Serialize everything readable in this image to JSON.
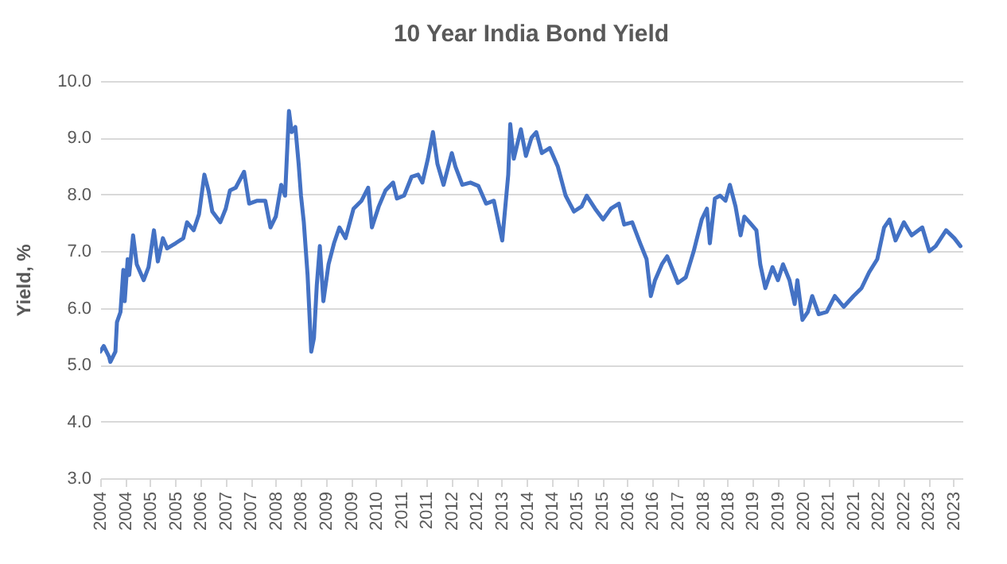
{
  "chart_data": {
    "type": "line",
    "title": "10 Year India Bond Yield",
    "ylabel": "Yield, %",
    "xlim": [
      "2004-02-01",
      "2024-02-14"
    ],
    "xticks": [
      {
        "value": "2004-02",
        "label": "2004"
      },
      {
        "value": "2004-09",
        "label": "2004"
      },
      {
        "value": "2005-04",
        "label": "2005"
      },
      {
        "value": "2005-11",
        "label": "2005"
      },
      {
        "value": "2006-06",
        "label": "2006"
      },
      {
        "value": "2007-01",
        "label": "2007"
      },
      {
        "value": "2007-08",
        "label": "2007"
      },
      {
        "value": "2008-03",
        "label": "2008"
      },
      {
        "value": "2008-10",
        "label": "2008"
      },
      {
        "value": "2009-05",
        "label": "2009"
      },
      {
        "value": "2009-12",
        "label": "2009"
      },
      {
        "value": "2010-07",
        "label": "2010"
      },
      {
        "value": "2011-02",
        "label": "2011"
      },
      {
        "value": "2011-09",
        "label": "2011"
      },
      {
        "value": "2012-04",
        "label": "2012"
      },
      {
        "value": "2012-11",
        "label": "2012"
      },
      {
        "value": "2013-06",
        "label": "2013"
      },
      {
        "value": "2014-01",
        "label": "2014"
      },
      {
        "value": "2014-08",
        "label": "2014"
      },
      {
        "value": "2015-03",
        "label": "2015"
      },
      {
        "value": "2015-10",
        "label": "2015"
      },
      {
        "value": "2016-05",
        "label": "2016"
      },
      {
        "value": "2016-12",
        "label": "2016"
      },
      {
        "value": "2017-07",
        "label": "2017"
      },
      {
        "value": "2018-02",
        "label": "2018"
      },
      {
        "value": "2018-09",
        "label": "2018"
      },
      {
        "value": "2019-04",
        "label": "2019"
      },
      {
        "value": "2019-11",
        "label": "2019"
      },
      {
        "value": "2020-06",
        "label": "2020"
      },
      {
        "value": "2021-01",
        "label": "2021"
      },
      {
        "value": "2021-08",
        "label": "2021"
      },
      {
        "value": "2022-03",
        "label": "2022"
      },
      {
        "value": "2022-10",
        "label": "2022"
      },
      {
        "value": "2023-05",
        "label": "2023"
      },
      {
        "value": "2023-12",
        "label": "2023"
      }
    ],
    "ylim": [
      3,
      10
    ],
    "yticks": [
      {
        "value": 3,
        "label": "3.0"
      },
      {
        "value": 4,
        "label": "4.0"
      },
      {
        "value": 5,
        "label": "5.0"
      },
      {
        "value": 6,
        "label": "6.0"
      },
      {
        "value": 7,
        "label": "7.0"
      },
      {
        "value": 8,
        "label": "8.0"
      },
      {
        "value": 9,
        "label": "9.0"
      },
      {
        "value": 10,
        "label": "10.0"
      }
    ],
    "grid": "y",
    "line_style": "solid",
    "marker": "none",
    "series": [
      {
        "color": "#4472c4",
        "x": [
          "2004-02-01",
          "2004-03-02",
          "2004-04-16",
          "2004-04-27",
          "2004-06-09",
          "2004-06-22",
          "2004-07-22",
          "2004-08-15",
          "2004-08-27",
          "2004-09-21",
          "2004-10-04",
          "2004-11-06",
          "2004-12-07",
          "2005-02-04",
          "2005-03-17",
          "2005-05-02",
          "2005-06-04",
          "2005-07-17",
          "2005-08-22",
          "2005-11-01",
          "2006-01-06",
          "2006-02-07",
          "2006-04-04",
          "2006-05-19",
          "2006-07-04",
          "2006-08-08",
          "2006-09-09",
          "2006-11-16",
          "2007-01-01",
          "2007-02-06",
          "2007-03-27",
          "2007-06-06",
          "2007-07-19",
          "2007-09-26",
          "2007-12-03",
          "2008-01-16",
          "2008-03-01",
          "2008-04-16",
          "2008-05-19",
          "2008-06-21",
          "2008-07-14",
          "2008-08-14",
          "2008-09-11",
          "2008-10-01",
          "2008-10-25",
          "2008-11-26",
          "2008-12-27",
          "2009-01-19",
          "2009-02-12",
          "2009-03-10",
          "2009-04-09",
          "2009-05-23",
          "2009-07-08",
          "2009-08-23",
          "2009-10-14",
          "2009-12-21",
          "2010-02-27",
          "2010-04-24",
          "2010-05-26",
          "2010-07-23",
          "2010-09-18",
          "2010-11-22",
          "2010-12-24",
          "2011-02-23",
          "2011-04-27",
          "2011-06-22",
          "2011-07-28",
          "2011-09-13",
          "2011-10-26",
          "2011-12-03",
          "2012-01-24",
          "2012-04-03",
          "2012-05-04",
          "2012-07-01",
          "2012-09-08",
          "2012-11-15",
          "2013-01-19",
          "2013-03-26",
          "2013-06-05",
          "2013-07-26",
          "2013-08-12",
          "2013-09-11",
          "2013-11-10",
          "2013-12-23",
          "2014-02-08",
          "2014-03-21",
          "2014-05-07",
          "2014-07-13",
          "2014-09-20",
          "2014-11-25",
          "2015-02-04",
          "2015-04-10",
          "2015-05-23",
          "2015-08-02",
          "2015-10-09",
          "2015-12-14",
          "2016-02-20",
          "2016-04-05",
          "2016-06-12",
          "2016-08-19",
          "2016-10-12",
          "2016-11-17",
          "2016-12-23",
          "2017-02-19",
          "2017-04-05",
          "2017-05-20",
          "2017-07-05",
          "2017-09-10",
          "2017-11-16",
          "2018-01-23",
          "2018-03-08",
          "2018-04-02",
          "2018-05-15",
          "2018-06-28",
          "2018-08-13",
          "2018-09-19",
          "2018-11-06",
          "2018-12-19",
          "2019-01-20",
          "2019-03-05",
          "2019-05-02",
          "2019-06-04",
          "2019-07-17",
          "2019-09-16",
          "2019-11-01",
          "2019-12-14",
          "2020-02-07",
          "2020-03-22",
          "2020-04-14",
          "2020-05-27",
          "2020-07-12",
          "2020-08-18",
          "2020-10-12",
          "2020-12-19",
          "2021-02-26",
          "2021-05-12",
          "2021-08-03",
          "2021-10-10",
          "2021-12-14",
          "2022-02-21",
          "2022-04-20",
          "2022-06-05",
          "2022-07-26",
          "2022-10-05",
          "2022-12-10",
          "2023-03-10",
          "2023-05-09",
          "2023-07-02",
          "2023-08-15",
          "2023-09-28",
          "2023-12-07",
          "2024-01-28"
        ],
        "values": [
          5.23,
          5.33,
          5.14,
          5.05,
          5.23,
          5.75,
          5.93,
          6.67,
          6.12,
          6.86,
          6.58,
          7.28,
          6.77,
          6.49,
          6.72,
          7.37,
          6.82,
          7.23,
          7.05,
          7.14,
          7.23,
          7.51,
          7.37,
          7.65,
          8.35,
          8.07,
          7.7,
          7.51,
          7.75,
          8.07,
          8.12,
          8.4,
          7.84,
          7.89,
          7.89,
          7.42,
          7.61,
          8.17,
          7.98,
          9.47,
          9.1,
          9.19,
          8.54,
          7.98,
          7.51,
          6.58,
          5.23,
          5.47,
          6.4,
          7.09,
          6.12,
          6.77,
          7.14,
          7.42,
          7.23,
          7.75,
          7.89,
          8.12,
          7.42,
          7.79,
          8.07,
          8.21,
          7.93,
          7.98,
          8.31,
          8.35,
          8.21,
          8.63,
          9.1,
          8.54,
          8.17,
          8.73,
          8.49,
          8.17,
          8.21,
          8.15,
          7.84,
          7.89,
          7.19,
          8.35,
          9.24,
          8.63,
          9.15,
          8.68,
          9,
          9.1,
          8.73,
          8.82,
          8.49,
          7.98,
          7.7,
          7.79,
          7.98,
          7.75,
          7.56,
          7.75,
          7.84,
          7.47,
          7.51,
          7.14,
          6.86,
          6.21,
          6.49,
          6.77,
          6.91,
          6.68,
          6.44,
          6.54,
          7,
          7.56,
          7.75,
          7.14,
          7.93,
          7.98,
          7.89,
          8.17,
          7.79,
          7.28,
          7.61,
          7.51,
          7.37,
          6.77,
          6.35,
          6.72,
          6.49,
          6.77,
          6.49,
          6.07,
          6.49,
          5.79,
          5.93,
          6.21,
          5.89,
          5.93,
          6.21,
          6.02,
          6.21,
          6.35,
          6.63,
          6.86,
          7.42,
          7.56,
          7.19,
          7.51,
          7.28,
          7.42,
          7,
          7.09,
          7.23,
          7.37,
          7.23,
          7.09
        ]
      }
    ]
  }
}
